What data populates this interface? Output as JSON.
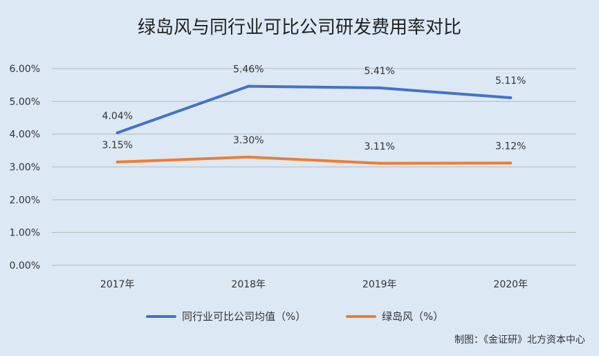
{
  "chart_data": {
    "type": "line",
    "title": "绿岛风与同行业可比公司研发费用率对比",
    "categories": [
      "2017年",
      "2018年",
      "2019年",
      "2020年"
    ],
    "ylim": [
      0,
      6
    ],
    "yticks": [
      "0.00%",
      "1.00%",
      "2.00%",
      "3.00%",
      "4.00%",
      "5.00%",
      "6.00%"
    ],
    "grid": true,
    "legend_position": "bottom",
    "series": [
      {
        "name": "同行业可比公司均值（%）",
        "values": [
          4.04,
          5.46,
          5.41,
          5.11
        ],
        "labels": [
          "4.04%",
          "5.46%",
          "5.41%",
          "5.11%"
        ],
        "color": "#4472c4"
      },
      {
        "name": "绿岛风（%）",
        "values": [
          3.15,
          3.3,
          3.11,
          3.12
        ],
        "labels": [
          "3.15%",
          "3.30%",
          "3.11%",
          "3.12%"
        ],
        "color": "#ed7d31"
      }
    ]
  },
  "footer": "制图：《金证研》北方资本中心"
}
